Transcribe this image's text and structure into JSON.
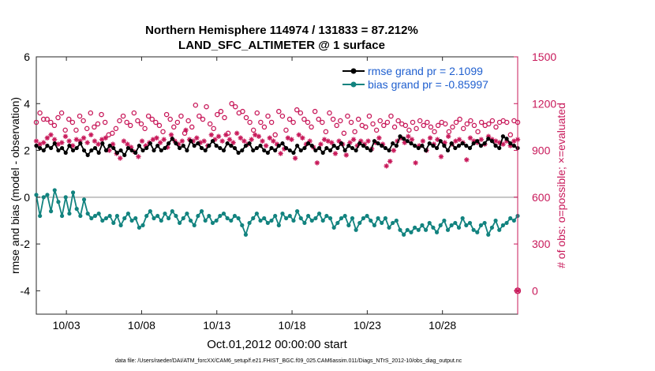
{
  "chart_data": {
    "type": "line",
    "title_line1": "Northern Hemisphere 114974 / 131833 = 87.212%",
    "title_line2": "LAND_SFC_ALTIMETER @ 1 surface",
    "ylabel_left": "rmse and bias (model - observation)",
    "ylabel_right": "# of obs: o=possible; ×=evaluated",
    "xlabel": "Oct.01,2012 00:00:00 start",
    "footnote": "data file: /Users/raeder/DAI/ATM_forcXX/CAM6_setup/f.e21.FHIST_BGC.f09_025.CAM6assim.011/Diags_NTrS_2012-10/obs_diag_output.nc",
    "xlim": [
      1,
      33
    ],
    "ylim_left": [
      -5,
      6
    ],
    "ylim_right": [
      -150,
      1500
    ],
    "x_ticks": [
      3,
      8,
      13,
      18,
      23,
      28
    ],
    "x_tick_labels": [
      "10/03",
      "10/08",
      "10/13",
      "10/18",
      "10/23",
      "10/28"
    ],
    "y_ticks_left": [
      -4,
      -2,
      0,
      2,
      4,
      6
    ],
    "y_ticks_right": [
      0,
      300,
      600,
      900,
      1200,
      1500
    ],
    "zero_line": 0,
    "legend_position": "top-right",
    "colors": {
      "rmse": "#000000",
      "bias": "#12837f",
      "obs": "#c8195a",
      "legend_text": "#1f5fcf",
      "zero_line": "#b4b4b4"
    },
    "series": [
      {
        "name": "rmse grand pr = 2.1099",
        "key": "rmse",
        "values": [
          2.2,
          2.1,
          2.0,
          2.2,
          2.1,
          2.3,
          2.0,
          2.1,
          1.9,
          2.2,
          2.0,
          2.1,
          2.3,
          2.0,
          1.8,
          2.0,
          2.1,
          1.9,
          2.3,
          2.0,
          2.2,
          2.1,
          1.9,
          2.0,
          1.8,
          2.1,
          2.0,
          1.9,
          2.2,
          2.0,
          2.1,
          2.3,
          2.0,
          2.2,
          2.0,
          2.1,
          2.3,
          2.5,
          2.3,
          2.1,
          2.2,
          2.0,
          2.4,
          2.2,
          2.3,
          2.1,
          2.0,
          2.2,
          2.4,
          2.2,
          2.1,
          2.0,
          2.3,
          2.2,
          2.1,
          1.9,
          2.0,
          2.2,
          2.3,
          2.0,
          2.1,
          2.2,
          2.0,
          1.9,
          2.1,
          2.0,
          2.2,
          2.3,
          2.1,
          2.0,
          1.9,
          2.2,
          2.0,
          2.1,
          2.3,
          2.2,
          2.0,
          2.1,
          1.9,
          2.1,
          2.0,
          2.2,
          2.1,
          2.3,
          2.0,
          2.2,
          2.1,
          2.0,
          2.3,
          2.2,
          2.1,
          2.0,
          2.4,
          2.3,
          2.2,
          2.1,
          2.0,
          2.3,
          2.2,
          2.6,
          2.5,
          2.4,
          2.3,
          2.2,
          2.1,
          2.2,
          2.0,
          2.3,
          2.2,
          2.1,
          2.4,
          2.2,
          2.0,
          2.3,
          2.1,
          2.2,
          2.3,
          2.2,
          2.1,
          2.3,
          2.4,
          2.2,
          2.3,
          2.5,
          2.4,
          2.2,
          2.1,
          2.6,
          2.5,
          2.3,
          2.2,
          2.1
        ]
      },
      {
        "name": "bias grand pr = -0.85997",
        "key": "bias",
        "values": [
          0.1,
          -0.8,
          0.0,
          0.1,
          -0.6,
          0.3,
          -0.2,
          -0.8,
          0.0,
          -0.7,
          0.2,
          -0.5,
          -0.8,
          -0.1,
          -0.7,
          -0.9,
          -0.8,
          -0.7,
          -1.0,
          -0.9,
          -0.8,
          -1.1,
          -0.8,
          -1.2,
          -0.9,
          -0.7,
          -1.0,
          -0.9,
          -1.3,
          -1.2,
          -0.8,
          -0.6,
          -0.9,
          -0.8,
          -1.0,
          -0.7,
          -0.9,
          -0.6,
          -0.8,
          -1.1,
          -0.9,
          -0.7,
          -1.0,
          -1.2,
          -0.8,
          -0.6,
          -1.0,
          -0.8,
          -1.1,
          -1.0,
          -0.8,
          -0.7,
          -0.9,
          -1.0,
          -0.8,
          -0.9,
          -1.2,
          -1.6,
          -1.1,
          -0.9,
          -0.7,
          -1.0,
          -0.9,
          -1.1,
          -1.0,
          -0.8,
          -1.2,
          -0.7,
          -0.9,
          -0.8,
          -1.0,
          -0.6,
          -0.9,
          -1.1,
          -0.8,
          -1.0,
          -0.9,
          -0.7,
          -1.0,
          -0.8,
          -0.9,
          -1.3,
          -1.1,
          -0.9,
          -0.8,
          -1.2,
          -0.9,
          -1.4,
          -1.1,
          -0.9,
          -0.8,
          -1.0,
          -1.2,
          -0.9,
          -1.1,
          -0.9,
          -1.3,
          -1.1,
          -1.0,
          -1.4,
          -1.6,
          -1.4,
          -1.5,
          -1.3,
          -1.4,
          -1.2,
          -1.4,
          -1.1,
          -1.3,
          -1.5,
          -1.2,
          -1.0,
          -1.4,
          -1.2,
          -1.1,
          -1.3,
          -0.9,
          -1.2,
          -1.1,
          -1.4,
          -1.5,
          -1.2,
          -1.1,
          -1.6,
          -1.3,
          -1.0,
          -1.4,
          -1.2,
          -1.1,
          -0.9,
          -1.0,
          -0.8
        ]
      },
      {
        "name": "possible",
        "key": "possible",
        "values": [
          1080,
          1140,
          1100,
          1100,
          1080,
          1060,
          1110,
          1140,
          1030,
          1100,
          1080,
          1030,
          1120,
          1090,
          1040,
          1140,
          1050,
          1070,
          1130,
          1080,
          1000,
          1010,
          1040,
          1090,
          1120,
          1080,
          1060,
          1140,
          1090,
          1070,
          1040,
          1120,
          1100,
          1080,
          1060,
          1020,
          1130,
          1100,
          1050,
          1080,
          1120,
          1010,
          1090,
          1050,
          1190,
          1120,
          1100,
          1180,
          1070,
          1040,
          1130,
          1150,
          1110,
          1010,
          1200,
          1180,
          1140,
          1150,
          1110,
          1080,
          1030,
          1140,
          1080,
          1050,
          1120,
          1080,
          1000,
          1150,
          1120,
          1030,
          1100,
          1080,
          1160,
          1140,
          1100,
          1080,
          1050,
          1150,
          1100,
          1080,
          1020,
          1140,
          1100,
          1060,
          1090,
          1010,
          1120,
          1080,
          1020,
          1100,
          1060,
          1050,
          1120,
          1070,
          1030,
          1090,
          1060,
          1080,
          1120,
          1050,
          1090,
          1070,
          1060,
          1030,
          1080,
          1040,
          1090,
          1060,
          1080,
          1050,
          1020,
          1060,
          1080,
          1070,
          1020,
          1050,
          1080,
          1100,
          1040,
          1070,
          1090,
          1060,
          1020,
          1080,
          1060,
          1070,
          1090,
          1050,
          1080,
          1090,
          1080,
          1000,
          1090,
          1080
        ]
      },
      {
        "name": "evaluated",
        "key": "evaluated",
        "values": [
          960,
          940,
          950,
          980,
          1000,
          970,
          940,
          950,
          990,
          960,
          930,
          970,
          960,
          980,
          950,
          1000,
          960,
          940,
          970,
          980,
          900,
          940,
          880,
          850,
          960,
          940,
          920,
          890,
          860,
          960,
          930,
          950,
          970,
          980,
          950,
          970,
          920,
          1000,
          960,
          940,
          960,
          1030,
          970,
          960,
          980,
          950,
          960,
          930,
          1000,
          970,
          990,
          960,
          1000,
          970,
          950,
          1010,
          980,
          960,
          940,
          970,
          1000,
          990,
          960,
          930,
          980,
          960,
          940,
          880,
          910,
          980,
          970,
          850,
          1000,
          980,
          940,
          960,
          920,
          820,
          940,
          970,
          960,
          950,
          880,
          960,
          940,
          870,
          950,
          970,
          930,
          960,
          940,
          960,
          910,
          950,
          980,
          940,
          800,
          830,
          900,
          960,
          980,
          950,
          990,
          970,
          820,
          930,
          960,
          900,
          980,
          940,
          970,
          860,
          950,
          990,
          940,
          960,
          970,
          950,
          840,
          980,
          960,
          950,
          970,
          940,
          990,
          970,
          960,
          950,
          940,
          960,
          930,
          960,
          970
        ]
      }
    ],
    "obs_zero_marker": {
      "x": 33,
      "possible": 0,
      "evaluated": 0
    }
  }
}
